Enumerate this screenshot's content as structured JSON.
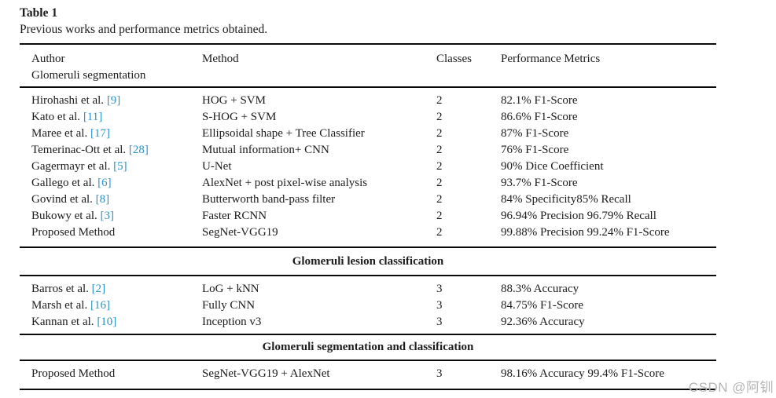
{
  "caption": {
    "label": "Table 1",
    "description": "Previous works and performance metrics obtained."
  },
  "colors": {
    "citation_link": "#2E93C6",
    "body_text": "#1c1c1c",
    "rule": "#0a0a0a",
    "watermark": "#b5b5b5"
  },
  "table": {
    "columns": [
      "Author",
      "Method",
      "Classes",
      "Performance Metrics"
    ],
    "header_subtitle": "Glomeruli segmentation",
    "sections": [
      {
        "title": "",
        "rows": [
          {
            "author": "Hirohashi et al. ",
            "cite": "[9]",
            "method": "HOG + SVM",
            "classes": "2",
            "metrics": "82.1% F1-Score"
          },
          {
            "author": "Kato et al. ",
            "cite": "[11]",
            "method": "S-HOG + SVM",
            "classes": "2",
            "metrics": "86.6% F1-Score"
          },
          {
            "author": "Maree et al. ",
            "cite": "[17]",
            "method": "Ellipsoidal shape + Tree Classifier",
            "classes": "2",
            "metrics": "87% F1-Score"
          },
          {
            "author": "Temerinac-Ott et al. ",
            "cite": "[28]",
            "method": "Mutual information+ CNN",
            "classes": "2",
            "metrics": "76% F1-Score"
          },
          {
            "author": "Gagermayr et al. ",
            "cite": "[5]",
            "method": "U-Net",
            "classes": "2",
            "metrics": "90% Dice Coefficient"
          },
          {
            "author": "Gallego et al. ",
            "cite": "[6]",
            "method": "AlexNet + post pixel-wise analysis",
            "classes": "2",
            "metrics": "93.7% F1-Score"
          },
          {
            "author": "Govind et al. ",
            "cite": "[8]",
            "method": "Butterworth band-pass filter",
            "classes": "2",
            "metrics": "84% Specificity85% Recall"
          },
          {
            "author": "Bukowy et al. ",
            "cite": "[3]",
            "method": "Faster RCNN",
            "classes": "2",
            "metrics": "96.94% Precision 96.79% Recall"
          },
          {
            "author": "Proposed Method",
            "cite": "",
            "method": "SegNet-VGG19",
            "classes": "2",
            "metrics": "99.88% Precision 99.24% F1-Score"
          }
        ]
      },
      {
        "title": "Glomeruli lesion classification",
        "rows": [
          {
            "author": "Barros et al. ",
            "cite": "[2]",
            "method": "LoG + kNN",
            "classes": "3",
            "metrics": "88.3% Accuracy"
          },
          {
            "author": "Marsh et al. ",
            "cite": "[16]",
            "method": "Fully CNN",
            "classes": "3",
            "metrics": "84.75% F1-Score"
          },
          {
            "author": "Kannan et al. ",
            "cite": "[10]",
            "method": "Inception v3",
            "classes": "3",
            "metrics": "92.36% Accuracy"
          }
        ]
      },
      {
        "title": "Glomeruli segmentation and classification",
        "rows": [
          {
            "author": "Proposed Method",
            "cite": "",
            "method": "SegNet-VGG19 + AlexNet",
            "classes": "3",
            "metrics": "98.16% Accuracy 99.4% F1-Score"
          }
        ]
      }
    ]
  },
  "watermark": "CSDN @阿钏"
}
